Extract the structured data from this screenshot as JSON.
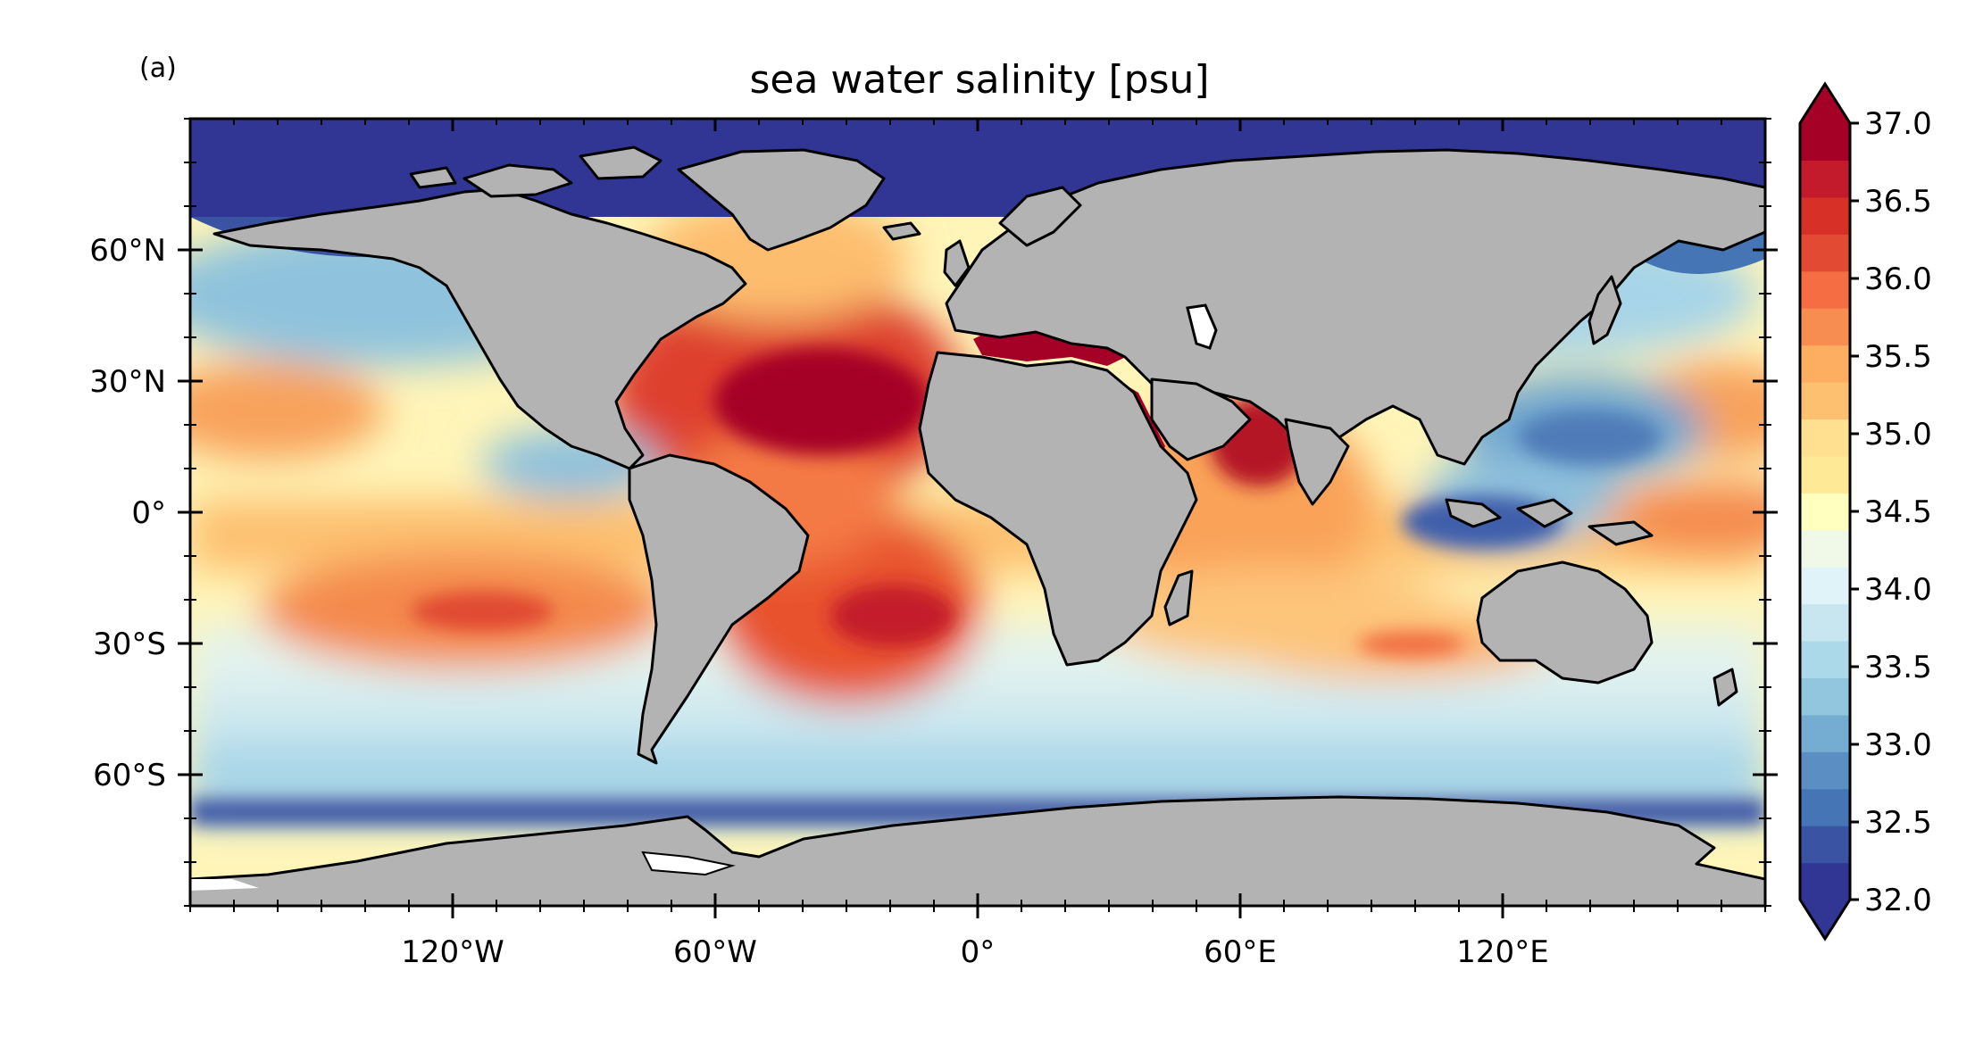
{
  "panel_label": "(a)",
  "title": "sea water salinity [psu]",
  "map": {
    "projection": "equirectangular",
    "lon_range": [
      -180,
      180
    ],
    "lat_range": [
      -90,
      90
    ],
    "land_color": "#b3b3b3",
    "coast_color": "#000000",
    "no_data_color": "#ffffff",
    "x_ticks": [
      {
        "value": -120,
        "label": "120°W"
      },
      {
        "value": -60,
        "label": "60°W"
      },
      {
        "value": 0,
        "label": "0°"
      },
      {
        "value": 60,
        "label": "60°E"
      },
      {
        "value": 120,
        "label": "120°E"
      }
    ],
    "y_ticks": [
      {
        "value": 60,
        "label": "60°N"
      },
      {
        "value": 30,
        "label": "30°N"
      },
      {
        "value": 0,
        "label": "0°"
      },
      {
        "value": -30,
        "label": "30°S"
      },
      {
        "value": -60,
        "label": "60°S"
      }
    ]
  },
  "colorbar": {
    "min": 32.0,
    "max": 37.0,
    "extend": "both",
    "colormap": "RdYlBu_r",
    "colors": [
      "#313695",
      "#3b53a3",
      "#4575b4",
      "#5b8fc3",
      "#74add1",
      "#92c5de",
      "#abd9e9",
      "#c7e6ef",
      "#e0f3f8",
      "#f0f9e8",
      "#ffffbf",
      "#fee997",
      "#fee090",
      "#fdc070",
      "#fdae61",
      "#f88d52",
      "#f46d43",
      "#e34a33",
      "#d73027",
      "#c41b2c",
      "#a50026"
    ],
    "under_color": "#313695",
    "over_color": "#a50026",
    "tick_labels": [
      {
        "value": 37.0,
        "label": "37.0"
      },
      {
        "value": 36.5,
        "label": "36.5"
      },
      {
        "value": 36.0,
        "label": "36.0"
      },
      {
        "value": 35.5,
        "label": "35.5"
      },
      {
        "value": 35.0,
        "label": "35.0"
      },
      {
        "value": 34.5,
        "label": "34.5"
      },
      {
        "value": 34.0,
        "label": "34.0"
      },
      {
        "value": 33.5,
        "label": "33.5"
      },
      {
        "value": 33.0,
        "label": "33.0"
      },
      {
        "value": 32.5,
        "label": "32.5"
      },
      {
        "value": 32.0,
        "label": "32.0"
      }
    ]
  }
}
